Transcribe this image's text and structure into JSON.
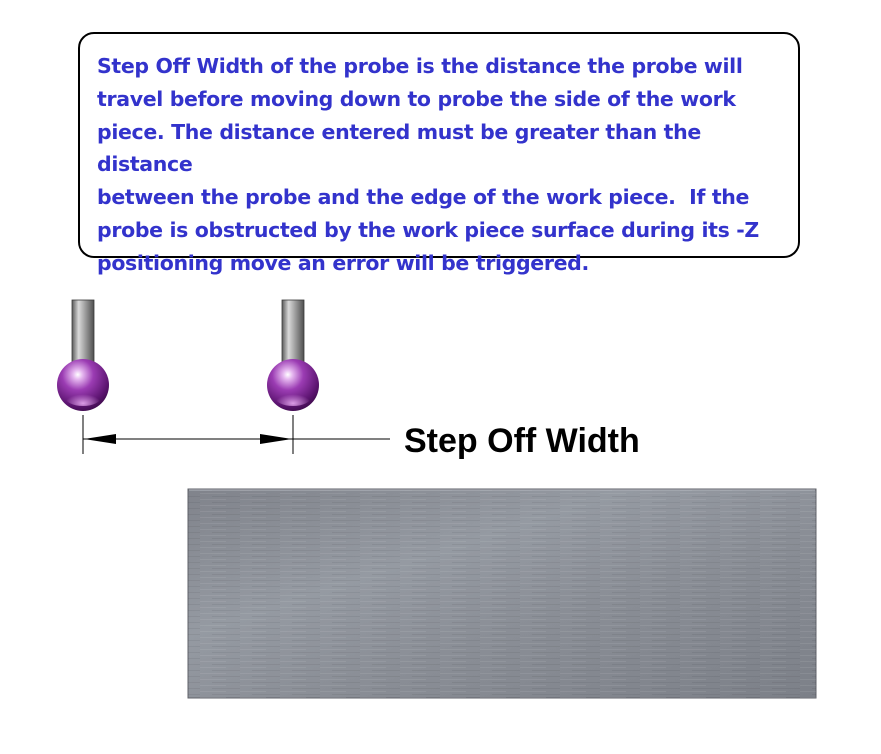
{
  "callout": {
    "text": "Step Off Width of the probe is the distance the probe will\ntravel before moving down to probe the side of the work\npiece. The distance entered must be greater than the distance\nbetween the probe and the edge of the work piece.  If the\nprobe is obstructed by the work piece surface during its -Z\npositioning move an error will be triggered.",
    "text_color": "#3333cc"
  },
  "dimension": {
    "label": "Step Off Width"
  },
  "colors": {
    "probe_tip": "#8a2a9e",
    "probe_stem": "#8f8f8f",
    "work_piece": "#8d9097",
    "dimension_line": "#000000"
  },
  "icons": {
    "probe_start": "probe-icon",
    "probe_end": "probe-icon",
    "work_piece": "metal-block"
  }
}
